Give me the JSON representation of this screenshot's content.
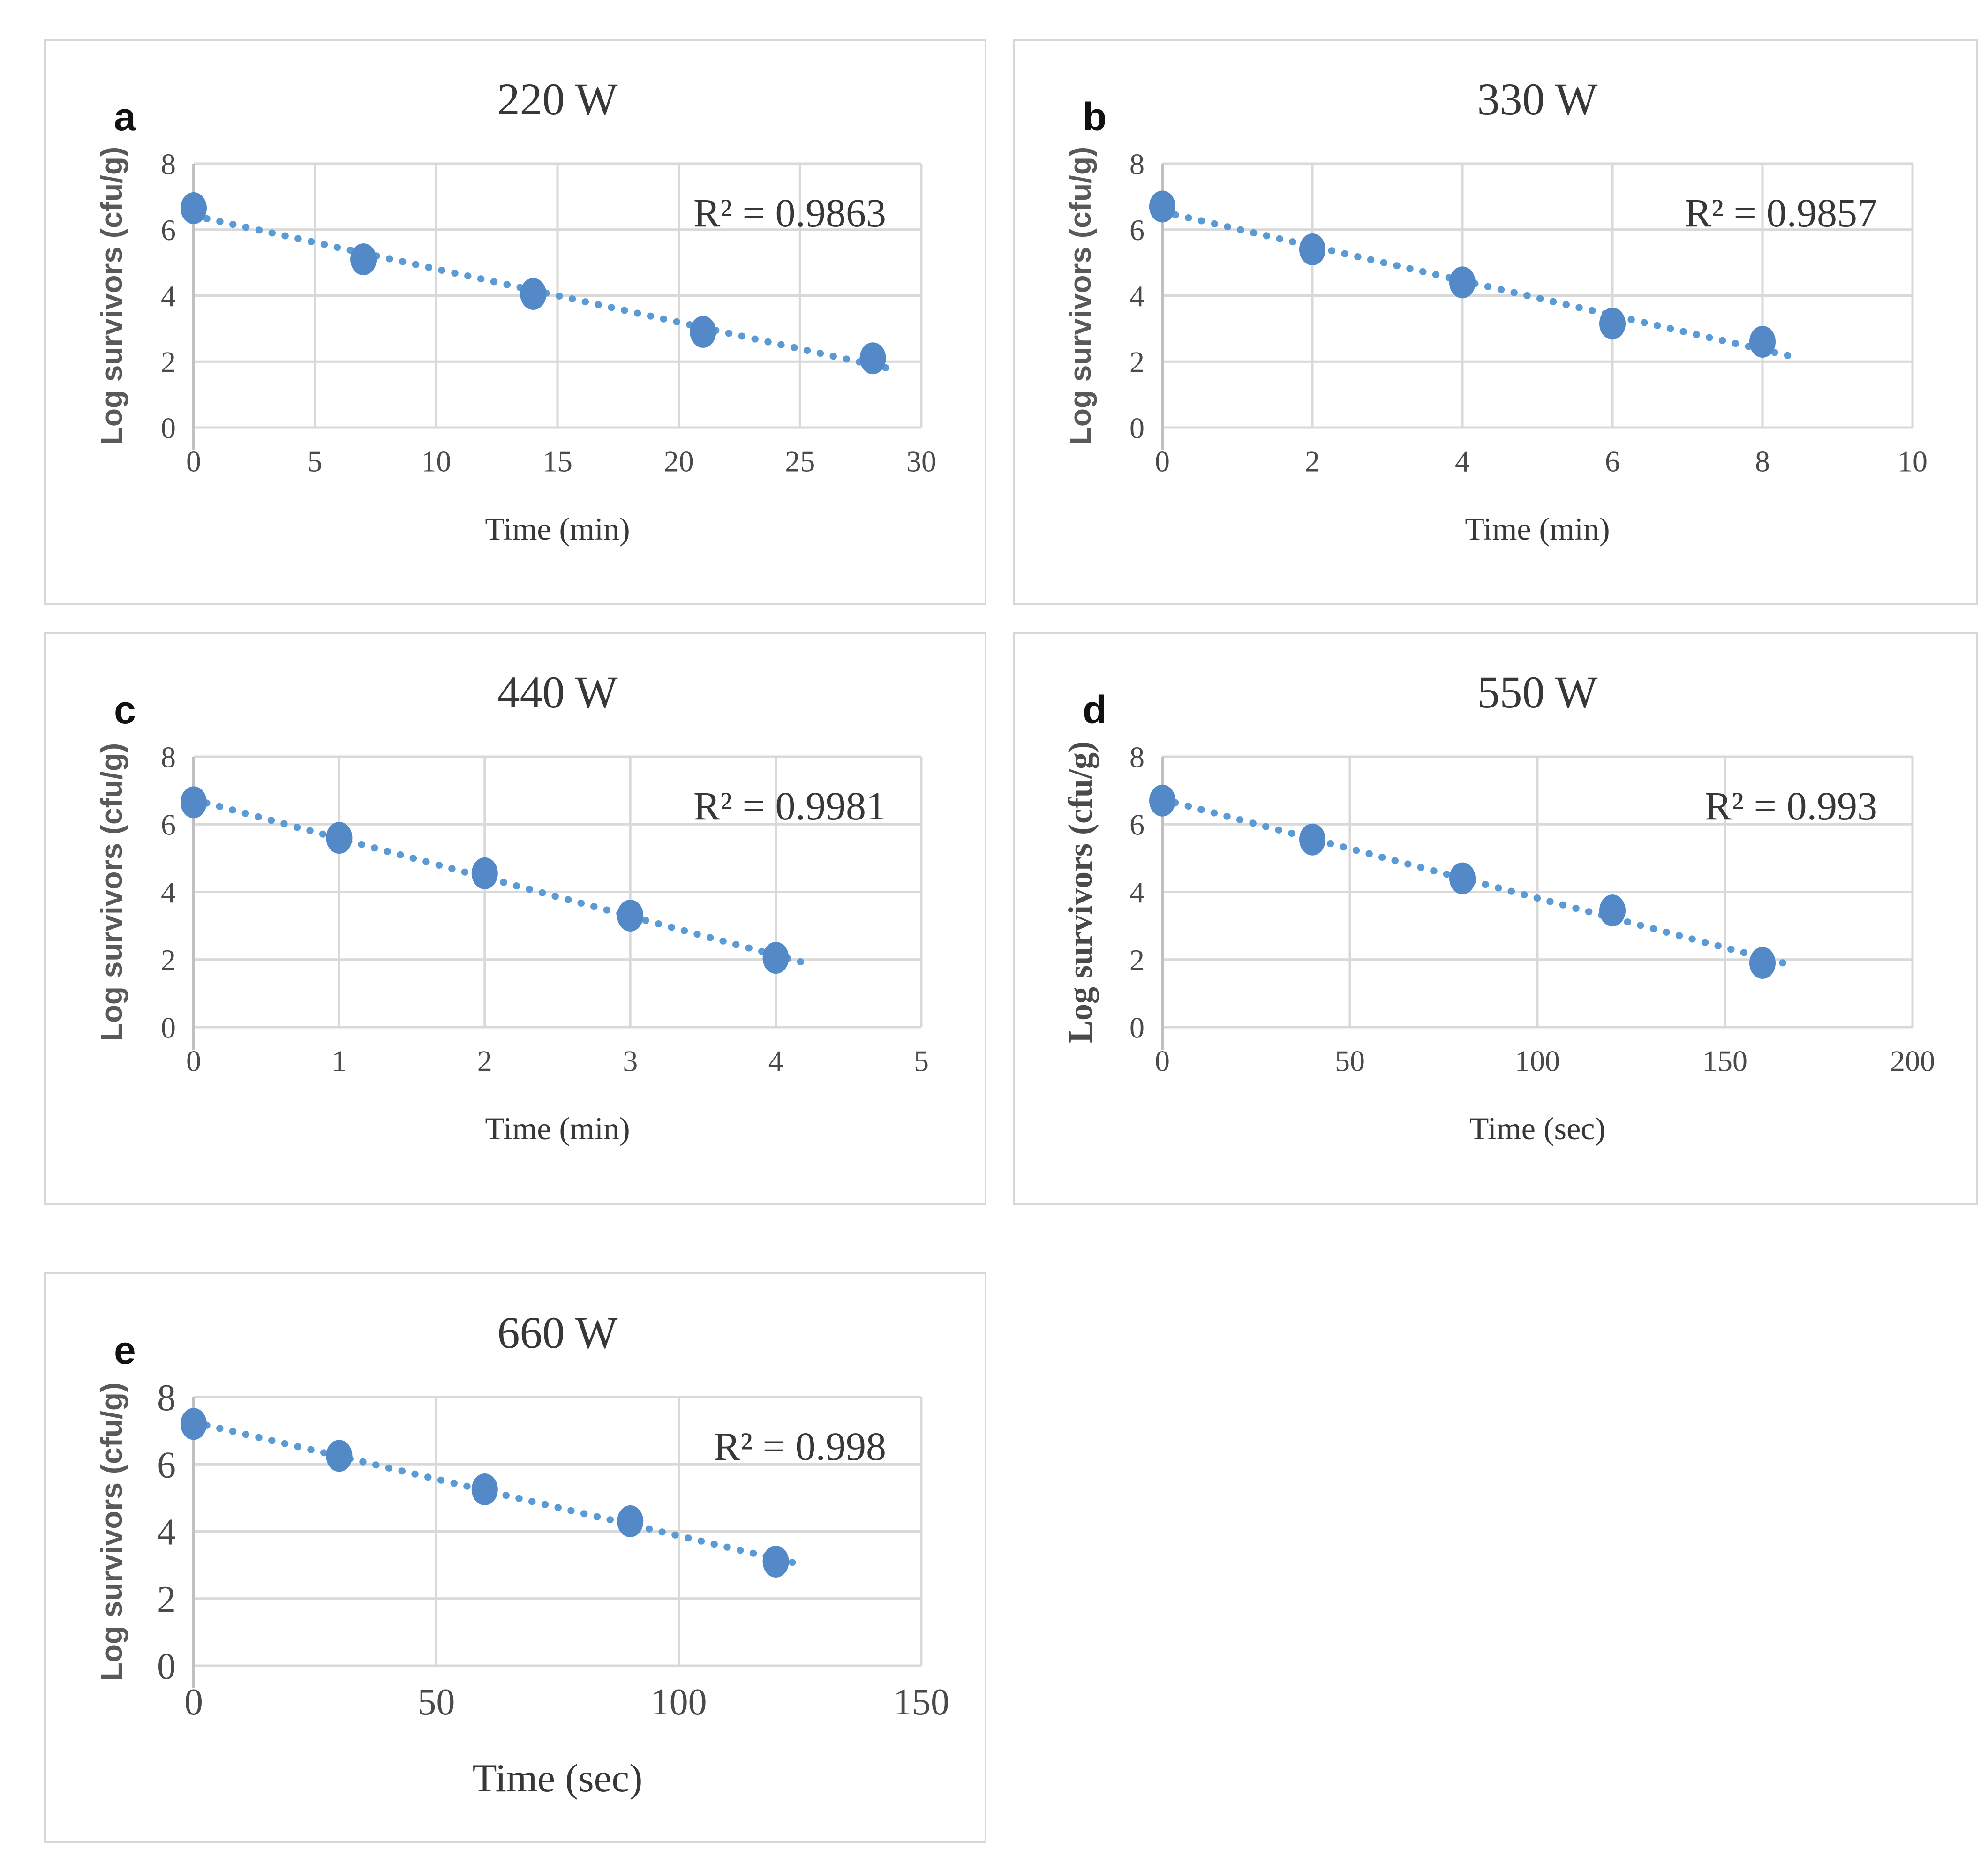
{
  "figure": {
    "description_title": "Microwave inactivation survivor curves",
    "panel_labels": [
      "a",
      "b",
      "c",
      "d",
      "e"
    ]
  },
  "colors": {
    "marker_blue": "#5489C8",
    "trendline_blue": "#5B9BD5",
    "gridline_gray": "#d9d9d9",
    "axis_gray": "#c0c0c0",
    "tick_text": "#4a4a4a",
    "title_text": "#373737",
    "panel_border": "#d7d7d7",
    "background": "#ffffff"
  },
  "chart_data": [
    {
      "type": "scatter",
      "panel_label": "a",
      "title": "220 W",
      "r2_label": "R² = 0.9863",
      "xlabel": "Time (min)",
      "ylabel": "Log survivors (cfu/g)",
      "xlim": [
        0,
        30
      ],
      "ylim": [
        0,
        8
      ],
      "xticks": [
        0,
        5,
        10,
        15,
        20,
        25,
        30
      ],
      "yticks": [
        0,
        2,
        4,
        6,
        8
      ],
      "points": [
        [
          0,
          6.65
        ],
        [
          7,
          5.1
        ],
        [
          14,
          4.05
        ],
        [
          21,
          2.9
        ],
        [
          28,
          2.1
        ]
      ],
      "trendline": "linear-dotted",
      "grid": true,
      "legend": "none",
      "ylabel_style": "sans",
      "tick_scale": 1
    },
    {
      "type": "scatter",
      "panel_label": "b",
      "title": "330 W",
      "r2_label": "R² = 0.9857",
      "xlabel": "Time (min)",
      "ylabel": "Log survivors (cfu/g)",
      "xlim": [
        0,
        10
      ],
      "ylim": [
        0,
        8
      ],
      "xticks": [
        0,
        2,
        4,
        6,
        8,
        10
      ],
      "yticks": [
        0,
        2,
        4,
        6,
        8
      ],
      "points": [
        [
          0,
          6.7
        ],
        [
          2,
          5.4
        ],
        [
          4,
          4.4
        ],
        [
          6,
          3.15
        ],
        [
          8,
          2.6
        ]
      ],
      "trendline": "linear-dotted",
      "grid": true,
      "legend": "none",
      "ylabel_style": "sans",
      "tick_scale": 1
    },
    {
      "type": "scatter",
      "panel_label": "c",
      "title": "440 W",
      "r2_label": "R² = 0.9981",
      "xlabel": "Time (min)",
      "ylabel": "Log survivors (cfu/g)",
      "xlim": [
        0,
        5
      ],
      "ylim": [
        0,
        8
      ],
      "xticks": [
        0,
        1,
        2,
        3,
        4,
        5
      ],
      "yticks": [
        0,
        2,
        4,
        6,
        8
      ],
      "points": [
        [
          0,
          6.65
        ],
        [
          1,
          5.6
        ],
        [
          2,
          4.55
        ],
        [
          3,
          3.3
        ],
        [
          4,
          2.05
        ]
      ],
      "trendline": "linear-dotted",
      "grid": true,
      "legend": "none",
      "ylabel_style": "sans",
      "tick_scale": 1
    },
    {
      "type": "scatter",
      "panel_label": "d",
      "title": "550 W",
      "r2_label": "R² = 0.993",
      "xlabel": "Time (sec)",
      "ylabel": "Log survivors (cfu/g)",
      "xlim": [
        0,
        200
      ],
      "ylim": [
        0,
        8
      ],
      "xticks": [
        0,
        50,
        100,
        150,
        200
      ],
      "yticks": [
        0,
        2,
        4,
        6,
        8
      ],
      "points": [
        [
          0,
          6.7
        ],
        [
          40,
          5.55
        ],
        [
          80,
          4.4
        ],
        [
          120,
          3.45
        ],
        [
          160,
          1.9
        ]
      ],
      "trendline": "linear-dotted",
      "grid": true,
      "legend": "none",
      "ylabel_style": "serif",
      "tick_scale": 1
    },
    {
      "type": "scatter",
      "panel_label": "e",
      "title": "660 W",
      "r2_label": "R² = 0.998",
      "xlabel": "Time (sec)",
      "ylabel": "Log survivors (cfu/g)",
      "xlim": [
        0,
        150
      ],
      "ylim": [
        0,
        8
      ],
      "xticks": [
        0,
        50,
        100,
        150
      ],
      "yticks": [
        0,
        2,
        4,
        6,
        8
      ],
      "points": [
        [
          0,
          7.2
        ],
        [
          30,
          6.25
        ],
        [
          60,
          5.25
        ],
        [
          90,
          4.3
        ],
        [
          120,
          3.1
        ]
      ],
      "trendline": "linear-dotted",
      "grid": true,
      "legend": "none",
      "ylabel_style": "sans",
      "tick_scale": 1.25
    }
  ]
}
